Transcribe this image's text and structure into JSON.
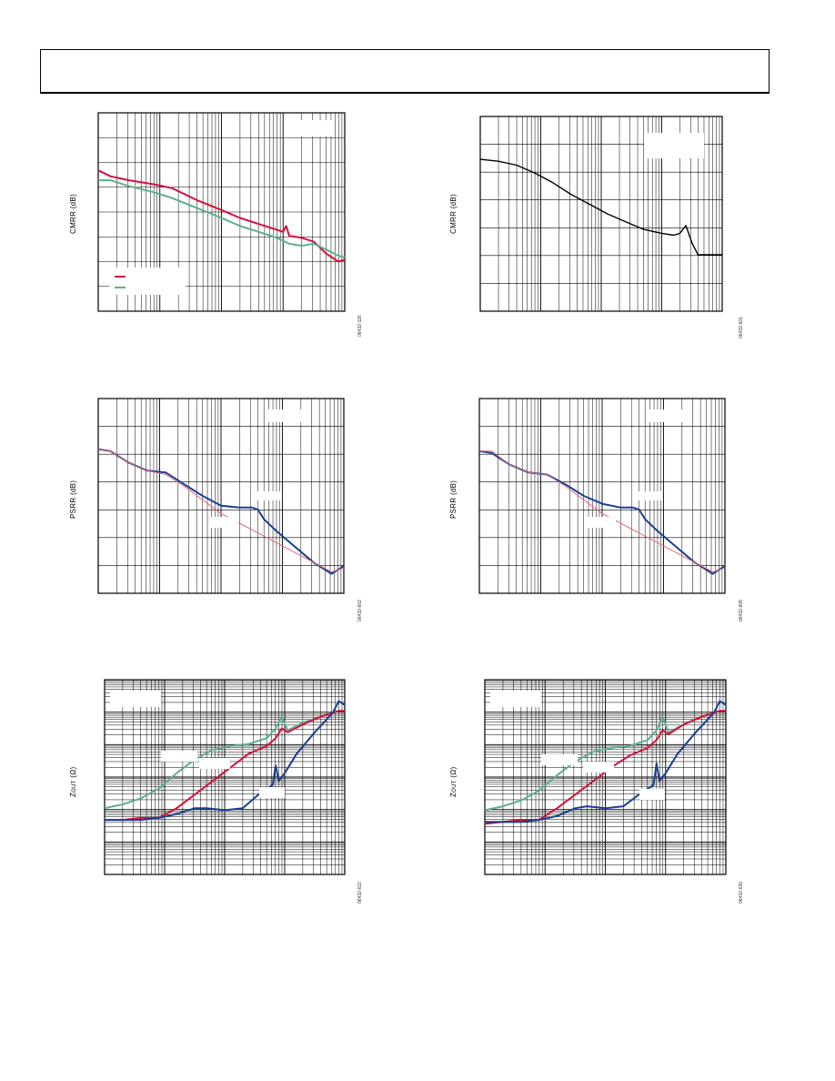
{
  "colors": {
    "red": "#d4123a",
    "green": "#5fae8e",
    "blue": "#1a3f8f",
    "pink": "#e06a78",
    "black": "#000000"
  },
  "panels": [
    {
      "id": "cmrr-left",
      "ylabel": "CMRR (dB)",
      "fignum": "06432-126"
    },
    {
      "id": "cmrr-right",
      "ylabel": "CMRR (dB)",
      "fignum": "06432-601"
    },
    {
      "id": "psrr-left",
      "ylabel": "PSRR (dB)",
      "fignum": "06432-602"
    },
    {
      "id": "psrr-right",
      "ylabel": "PSRR (dB)",
      "fignum": "06432-605"
    },
    {
      "id": "zout-left",
      "ylabel": "Z",
      "ylabel_sub": "OUT",
      "ylabel_unit": " (Ω)",
      "fignum": "06432-622"
    },
    {
      "id": "zout-right",
      "ylabel": "Z",
      "ylabel_sub": "OUT",
      "ylabel_unit": " (Ω)",
      "fignum": "06432-630"
    }
  ],
  "chart_data": [
    {
      "type": "line",
      "panel": "cmrr-left",
      "x_scale": "log",
      "x_decades": 4,
      "y_divisions": 8,
      "y_scale": "linear",
      "series": [
        {
          "color": "red",
          "x": [
            0,
            0.2,
            0.5,
            0.9,
            1.2,
            1.6,
            2.0,
            2.3,
            2.6,
            2.9,
            3.0,
            3.05,
            3.1,
            3.3,
            3.5,
            3.7,
            3.9,
            4.0
          ],
          "y": [
            0.71,
            0.68,
            0.66,
            0.64,
            0.62,
            0.56,
            0.51,
            0.47,
            0.44,
            0.41,
            0.4,
            0.43,
            0.38,
            0.37,
            0.35,
            0.29,
            0.25,
            0.26
          ]
        },
        {
          "color": "green",
          "x": [
            0,
            0.2,
            0.5,
            0.9,
            1.2,
            1.6,
            2.0,
            2.3,
            2.6,
            2.9,
            3.1,
            3.3,
            3.5,
            3.7,
            3.9,
            4.0
          ],
          "y": [
            0.66,
            0.66,
            0.63,
            0.6,
            0.57,
            0.52,
            0.47,
            0.43,
            0.4,
            0.37,
            0.34,
            0.33,
            0.34,
            0.31,
            0.28,
            0.27
          ]
        }
      ]
    },
    {
      "type": "line",
      "panel": "cmrr-right",
      "x_scale": "log",
      "x_decades": 4,
      "y_divisions": 7,
      "y_scale": "linear",
      "series": [
        {
          "color": "black",
          "x": [
            0,
            0.3,
            0.6,
            0.9,
            1.2,
            1.5,
            1.8,
            2.1,
            2.4,
            2.7,
            3.0,
            3.2,
            3.3,
            3.4,
            3.5,
            3.6,
            3.8,
            4.0
          ],
          "y": [
            0.78,
            0.77,
            0.75,
            0.71,
            0.66,
            0.6,
            0.55,
            0.5,
            0.46,
            0.42,
            0.4,
            0.39,
            0.4,
            0.44,
            0.35,
            0.29,
            0.29,
            0.29
          ]
        }
      ]
    },
    {
      "type": "line",
      "panel": "psrr-left",
      "x_scale": "log",
      "x_decades": 4,
      "y_divisions": 7,
      "y_scale": "linear",
      "series": [
        {
          "color": "blue",
          "x": [
            0,
            0.2,
            0.5,
            0.8,
            1.1,
            1.4,
            1.7,
            2.0,
            2.3,
            2.5,
            2.6,
            2.7,
            2.9,
            3.2,
            3.5,
            3.8,
            3.9,
            4.0
          ],
          "y": [
            0.74,
            0.73,
            0.67,
            0.63,
            0.62,
            0.56,
            0.5,
            0.45,
            0.44,
            0.44,
            0.43,
            0.38,
            0.32,
            0.24,
            0.16,
            0.1,
            0.12,
            0.14
          ]
        },
        {
          "color": "pink",
          "x": [
            0,
            0.2,
            0.5,
            0.8,
            1.1,
            1.4,
            1.7,
            2.0,
            2.3,
            2.6,
            2.9,
            3.2,
            3.5,
            3.8,
            4.0
          ],
          "y": [
            0.74,
            0.73,
            0.67,
            0.63,
            0.61,
            0.55,
            0.48,
            0.41,
            0.36,
            0.31,
            0.26,
            0.21,
            0.16,
            0.11,
            0.13
          ]
        }
      ]
    },
    {
      "type": "line",
      "panel": "psrr-right",
      "x_scale": "log",
      "x_decades": 4,
      "y_divisions": 7,
      "y_scale": "linear",
      "series": [
        {
          "color": "blue",
          "x": [
            0,
            0.2,
            0.5,
            0.8,
            1.1,
            1.4,
            1.7,
            2.0,
            2.3,
            2.5,
            2.6,
            2.7,
            2.9,
            3.2,
            3.5,
            3.8,
            3.9,
            4.0
          ],
          "y": [
            0.73,
            0.72,
            0.66,
            0.62,
            0.61,
            0.56,
            0.5,
            0.46,
            0.44,
            0.44,
            0.43,
            0.38,
            0.32,
            0.24,
            0.16,
            0.1,
            0.12,
            0.14
          ]
        },
        {
          "color": "pink",
          "x": [
            0,
            0.2,
            0.5,
            0.8,
            1.1,
            1.4,
            1.7,
            2.0,
            2.3,
            2.6,
            2.9,
            3.2,
            3.5,
            3.8,
            4.0
          ],
          "y": [
            0.73,
            0.73,
            0.66,
            0.62,
            0.61,
            0.55,
            0.48,
            0.41,
            0.36,
            0.31,
            0.26,
            0.21,
            0.16,
            0.11,
            0.13
          ]
        }
      ]
    },
    {
      "type": "line",
      "panel": "zout-left",
      "x_scale": "log",
      "x_decades": 4,
      "y_scale": "log",
      "y_decades": 6,
      "series": [
        {
          "color": "green",
          "x": [
            0,
            0.3,
            0.6,
            0.9,
            1.2,
            1.5,
            1.8,
            2.1,
            2.4,
            2.7,
            2.85,
            2.95,
            3.05,
            3.3,
            3.6,
            3.9,
            4.0
          ],
          "y": [
            0.34,
            0.36,
            0.39,
            0.44,
            0.52,
            0.59,
            0.64,
            0.66,
            0.67,
            0.7,
            0.75,
            0.81,
            0.74,
            0.78,
            0.81,
            0.84,
            0.84
          ]
        },
        {
          "color": "red",
          "x": [
            0,
            0.3,
            0.6,
            0.9,
            1.2,
            1.5,
            1.8,
            2.1,
            2.4,
            2.7,
            2.85,
            2.95,
            3.05,
            3.3,
            3.6,
            3.9,
            4.0
          ],
          "y": [
            0.28,
            0.28,
            0.29,
            0.29,
            0.34,
            0.41,
            0.48,
            0.55,
            0.62,
            0.66,
            0.7,
            0.75,
            0.73,
            0.77,
            0.81,
            0.84,
            0.84
          ]
        },
        {
          "color": "blue",
          "x": [
            0,
            0.3,
            0.6,
            0.9,
            1.2,
            1.5,
            1.7,
            2.0,
            2.3,
            2.6,
            2.8,
            2.85,
            2.9,
            3.0,
            3.2,
            3.5,
            3.8,
            3.9,
            4.0
          ],
          "y": [
            0.28,
            0.28,
            0.28,
            0.29,
            0.31,
            0.34,
            0.34,
            0.33,
            0.34,
            0.42,
            0.46,
            0.56,
            0.48,
            0.52,
            0.62,
            0.73,
            0.83,
            0.89,
            0.87
          ]
        }
      ]
    },
    {
      "type": "line",
      "panel": "zout-right",
      "x_scale": "log",
      "x_decades": 4,
      "y_scale": "log",
      "y_decades": 6,
      "series": [
        {
          "color": "green",
          "x": [
            0,
            0.3,
            0.6,
            0.9,
            1.2,
            1.5,
            1.8,
            2.1,
            2.4,
            2.7,
            2.85,
            2.95,
            3.05,
            3.3,
            3.6,
            3.9,
            4.0
          ],
          "y": [
            0.33,
            0.35,
            0.38,
            0.43,
            0.51,
            0.58,
            0.63,
            0.65,
            0.66,
            0.69,
            0.74,
            0.81,
            0.73,
            0.77,
            0.81,
            0.84,
            0.84
          ]
        },
        {
          "color": "red",
          "x": [
            0,
            0.3,
            0.6,
            0.9,
            1.2,
            1.5,
            1.8,
            2.1,
            2.4,
            2.7,
            2.85,
            2.95,
            3.05,
            3.3,
            3.6,
            3.9,
            4.0
          ],
          "y": [
            0.26,
            0.27,
            0.28,
            0.28,
            0.34,
            0.41,
            0.48,
            0.55,
            0.61,
            0.65,
            0.69,
            0.74,
            0.72,
            0.77,
            0.81,
            0.84,
            0.84
          ]
        },
        {
          "color": "blue",
          "x": [
            0,
            0.3,
            0.6,
            0.9,
            1.2,
            1.5,
            1.7,
            2.0,
            2.3,
            2.6,
            2.8,
            2.85,
            2.9,
            3.0,
            3.2,
            3.5,
            3.8,
            3.9,
            4.0
          ],
          "y": [
            0.27,
            0.27,
            0.27,
            0.28,
            0.3,
            0.34,
            0.35,
            0.34,
            0.35,
            0.42,
            0.46,
            0.57,
            0.48,
            0.52,
            0.62,
            0.73,
            0.83,
            0.89,
            0.87
          ]
        }
      ]
    }
  ]
}
